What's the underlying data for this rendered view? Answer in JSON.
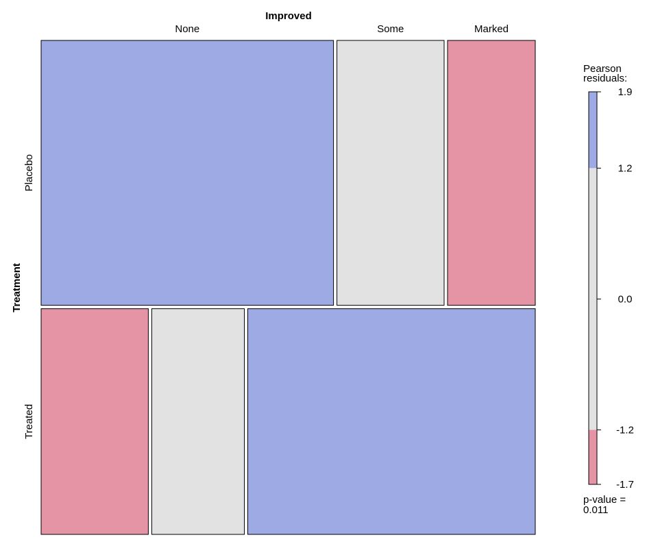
{
  "chart_data": {
    "type": "mosaic",
    "title": "",
    "top_variable": "Improved",
    "left_variable": "Treatment",
    "columns": [
      "None",
      "Some",
      "Marked"
    ],
    "rows": [
      "Placebo",
      "Treated"
    ],
    "cells": [
      {
        "row": "Placebo",
        "col": "None",
        "width_share": 0.6,
        "fill": "#9daae4",
        "residual_band": "> 1.2"
      },
      {
        "row": "Placebo",
        "col": "Some",
        "width_share": 0.22,
        "fill": "#e2e2e2",
        "residual_band": "-1.2 to 1.2"
      },
      {
        "row": "Placebo",
        "col": "Marked",
        "width_share": 0.18,
        "fill": "#e494a4",
        "residual_band": "< -1.2"
      },
      {
        "row": "Treated",
        "col": "None",
        "width_share": 0.22,
        "fill": "#e494a4",
        "residual_band": "< -1.2"
      },
      {
        "row": "Treated",
        "col": "Some",
        "width_share": 0.19,
        "fill": "#e2e2e2",
        "residual_band": "-1.2 to 1.2"
      },
      {
        "row": "Treated",
        "col": "Marked",
        "width_share": 0.59,
        "fill": "#9daae4",
        "residual_band": "> 1.2"
      }
    ],
    "row_height_share": [
      0.54,
      0.46
    ],
    "legend": {
      "title_line1": "Pearson",
      "title_line2": "residuals:",
      "range": [
        -1.7,
        1.9
      ],
      "bands": [
        {
          "from": 1.2,
          "to": 1.9,
          "fill": "#9daae4"
        },
        {
          "from": -1.2,
          "to": 1.2,
          "fill": "#e2e2e2"
        },
        {
          "from": -1.7,
          "to": -1.2,
          "fill": "#e494a4"
        }
      ],
      "ticks": [
        {
          "value": 1.9,
          "label": "1.9"
        },
        {
          "value": 1.2,
          "label": "1.2"
        },
        {
          "value": 0.0,
          "label": "0.0"
        },
        {
          "value": -1.2,
          "label": "-1.2"
        },
        {
          "value": -1.7,
          "label": "-1.7"
        }
      ],
      "pvalue_line1": "p-value =",
      "pvalue_line2": "0.011"
    }
  }
}
